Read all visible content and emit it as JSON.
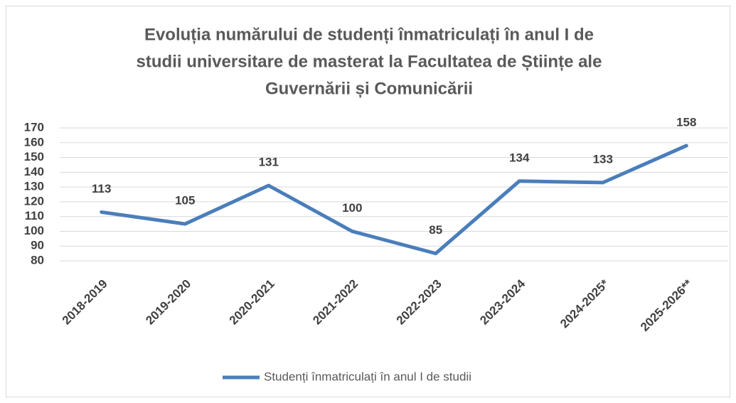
{
  "chart_data": {
    "type": "line",
    "title": [
      "Evoluția numărului de studenți înmatriculați în anul I de",
      "studii universitare de masterat la Facultatea de Științe ale",
      "Guvernării și Comunicării"
    ],
    "categories": [
      "2018-2019",
      "2019-2020",
      "2020-2021",
      "2021-2022",
      "2022-2023",
      "2023-2024",
      "2024-2025*",
      "2025-2026**"
    ],
    "series": [
      {
        "name": "Studenți înmatriculați în anul I de studii",
        "color": "#4a7ebb",
        "values": [
          113,
          105,
          131,
          100,
          85,
          134,
          133,
          158
        ]
      }
    ],
    "ylim": [
      80,
      170
    ],
    "yticks": [
      80,
      90,
      100,
      110,
      120,
      130,
      140,
      150,
      160,
      170
    ],
    "grid": true,
    "legend": "bottom",
    "data_labels": true
  }
}
